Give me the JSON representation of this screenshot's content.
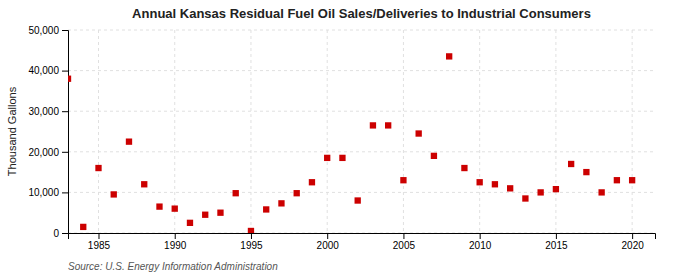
{
  "chart_data": {
    "type": "scatter",
    "title": "Annual Kansas Residual Fuel Oil Sales/Deliveries to Industrial Consumers",
    "y_label": "Thousand Gallons",
    "source": "Source: U.S. Energy Information Administration",
    "color": "#cc0000",
    "marker": "square",
    "grid": true,
    "xlim": [
      1983,
      2021.5
    ],
    "ylim": [
      0,
      50000
    ],
    "xticks": [
      1985,
      1990,
      1995,
      2000,
      2005,
      2010,
      2015,
      2020
    ],
    "yticks": [
      0,
      {
        "value": 10000,
        "label": "10,000"
      },
      {
        "value": 20000,
        "label": "20,000"
      },
      {
        "value": 30000,
        "label": "30,000"
      },
      {
        "value": 40000,
        "label": "40,000"
      },
      {
        "value": 50000,
        "label": "50,000"
      }
    ],
    "x": [
      1983,
      1984,
      1985,
      1986,
      1987,
      1988,
      1989,
      1990,
      1991,
      1992,
      1993,
      1994,
      1995,
      1996,
      1997,
      1998,
      1999,
      2000,
      2001,
      2002,
      2003,
      2004,
      2005,
      2006,
      2007,
      2008,
      2009,
      2010,
      2011,
      2012,
      2013,
      2014,
      2015,
      2016,
      2017,
      2018,
      2019,
      2020
    ],
    "values": [
      38000,
      1500,
      16000,
      9500,
      22500,
      12000,
      6500,
      6000,
      2500,
      4500,
      5000,
      9800,
      500,
      5800,
      7300,
      9800,
      12500,
      18500,
      18500,
      8000,
      26500,
      26500,
      13000,
      24500,
      19000,
      43500,
      16000,
      12500,
      12000,
      11000,
      8500,
      10000,
      10800,
      17000,
      15000,
      10000,
      13000,
      13000
    ]
  }
}
